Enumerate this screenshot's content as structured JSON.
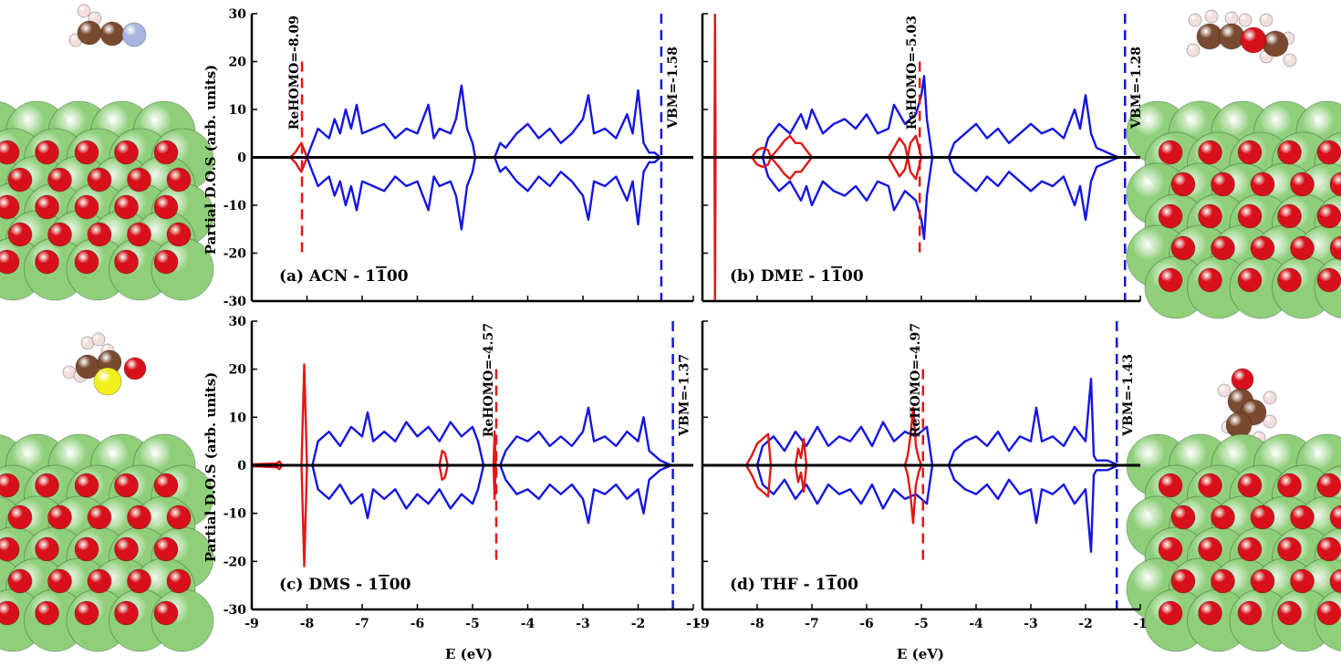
{
  "figure": {
    "ylabel": "Partial D.O.S (arb. units)",
    "xlabel": "E (eV)"
  },
  "colors": {
    "substrate_atom": "#8fcf7a",
    "oxygen_atom": "#d8101a",
    "carbon_atom": "#7a4a30",
    "hydrogen_atom": "#f3dede",
    "nitrogen_atom": "#a9b4e0",
    "sulfur_atom": "#f2f01a",
    "surface_dos": "#1515e0",
    "adsorbate_dos": "#e01818",
    "zero_line": "#000000"
  },
  "chart_data": [
    {
      "type": "line",
      "panel_label": "(a) ACN - 1",
      "panel_label_bar": "1",
      "panel_label_rest": "00",
      "xlim": [
        -9,
        -1
      ],
      "ylim": [
        -30,
        30
      ],
      "xticks": [
        -9,
        -8,
        -7,
        -6,
        -5,
        -4,
        -3,
        -2,
        -1
      ],
      "yticks": [
        -30,
        -20,
        -10,
        0,
        10,
        20,
        30
      ],
      "rehomo": {
        "label": "ReHOMO=-8.09",
        "x": -8.09,
        "ytop": 20
      },
      "vbm": {
        "label": "VBM=-1.58",
        "x": -1.58
      },
      "series": [
        {
          "name": "surface",
          "color": "#1515e0",
          "x": [
            -8.0,
            -7.9,
            -7.8,
            -7.6,
            -7.5,
            -7.4,
            -7.3,
            -7.2,
            -7.1,
            -7.0,
            -6.8,
            -6.6,
            -6.4,
            -6.2,
            -6.0,
            -5.8,
            -5.7,
            -5.6,
            -5.4,
            -5.3,
            -5.2,
            -5.1,
            -5.0,
            -4.95,
            -4.6,
            -4.5,
            -4.4,
            -4.2,
            -4.0,
            -3.8,
            -3.6,
            -3.4,
            -3.2,
            -3.0,
            -2.9,
            -2.8,
            -2.6,
            -2.4,
            -2.2,
            -2.1,
            -2.0,
            -1.9,
            -1.8,
            -1.7,
            -1.6
          ],
          "y": [
            0,
            3,
            6,
            4,
            8,
            5,
            10,
            6,
            11,
            5,
            6,
            7,
            4,
            6,
            5,
            11,
            4,
            6,
            5,
            8,
            15,
            6,
            3,
            0,
            0,
            3,
            2,
            5,
            7,
            4,
            6,
            3,
            5,
            8,
            13,
            5,
            6,
            4,
            9,
            5,
            14,
            3,
            1,
            1,
            0
          ]
        },
        {
          "name": "adsorbate",
          "color": "#e01818",
          "x": [
            -8.3,
            -8.2,
            -8.15,
            -8.1,
            -8.05,
            -8.0
          ],
          "y": [
            0,
            1.2,
            2.2,
            3.0,
            1.5,
            0
          ]
        }
      ]
    },
    {
      "type": "line",
      "panel_label": "(b) DME - 1",
      "panel_label_bar": "1",
      "panel_label_rest": "00",
      "xlim": [
        -9,
        -1
      ],
      "ylim": [
        -30,
        30
      ],
      "xticks": [
        -9,
        -8,
        -7,
        -6,
        -5,
        -4,
        -3,
        -2,
        -1
      ],
      "yticks": [
        -30,
        -20,
        -10,
        0,
        10,
        20,
        30
      ],
      "rehomo": {
        "label": "ReHOMO=-5.03",
        "x": -5.03,
        "ytop": 20
      },
      "vbm": {
        "label": "VBM=-1.28",
        "x": -1.28
      },
      "series": [
        {
          "name": "surface",
          "color": "#1515e0",
          "x": [
            -7.9,
            -7.8,
            -7.6,
            -7.4,
            -7.2,
            -7.1,
            -7.0,
            -6.8,
            -6.6,
            -6.4,
            -6.2,
            -6.0,
            -5.8,
            -5.6,
            -5.5,
            -5.3,
            -5.1,
            -5.0,
            -4.95,
            -4.9,
            -4.8,
            -4.5,
            -4.4,
            -4.2,
            -4.0,
            -3.8,
            -3.6,
            -3.4,
            -3.2,
            -3.0,
            -2.8,
            -2.6,
            -2.4,
            -2.2,
            -2.1,
            -2.0,
            -1.9,
            -1.8,
            -1.6,
            -1.4
          ],
          "y": [
            0,
            4,
            7,
            5,
            9,
            6,
            10,
            5,
            7,
            8,
            6,
            9,
            5,
            6,
            11,
            7,
            9,
            13,
            17,
            8,
            0,
            0,
            3,
            5,
            7,
            4,
            6,
            3,
            5,
            7,
            5,
            6,
            4,
            10,
            6,
            13,
            5,
            2,
            1,
            0
          ]
        },
        {
          "name": "adsorbate",
          "color": "#e01818",
          "x": [
            -8.1,
            -8.0,
            -7.9,
            -7.8,
            -7.75,
            -7.6,
            -7.5,
            -7.4,
            -7.3,
            -7.2,
            -7.1,
            -7.0,
            -5.6,
            -5.5,
            -5.4,
            -5.3,
            -5.25,
            -5.2,
            -5.1,
            -5.0
          ],
          "y": [
            0,
            1.5,
            2,
            1.5,
            0,
            2,
            3.5,
            4.5,
            3,
            3,
            1.5,
            0,
            0,
            2,
            4,
            2.5,
            0,
            3,
            4.5,
            0
          ]
        },
        {
          "name": "adsorbate-spike",
          "color": "#e01818",
          "x": [
            -8.78,
            -8.77,
            -8.76
          ],
          "y": [
            0,
            30,
            0
          ]
        }
      ]
    },
    {
      "type": "line",
      "panel_label": "(c) DMS - 1",
      "panel_label_bar": "1",
      "panel_label_rest": "00",
      "xlim": [
        -9,
        -1
      ],
      "ylim": [
        -30,
        30
      ],
      "xticks": [
        -9,
        -8,
        -7,
        -6,
        -5,
        -4,
        -3,
        -2,
        -1
      ],
      "yticks": [
        -30,
        -20,
        -10,
        0,
        10,
        20,
        30
      ],
      "rehomo": {
        "label": "ReHOMO=-4.57",
        "x": -4.57,
        "ytop": 20
      },
      "vbm": {
        "label": "VBM=-1.37",
        "x": -1.37
      },
      "series": [
        {
          "name": "surface",
          "color": "#1515e0",
          "x": [
            -7.9,
            -7.8,
            -7.6,
            -7.4,
            -7.2,
            -7.0,
            -6.9,
            -6.8,
            -6.6,
            -6.4,
            -6.2,
            -6.0,
            -5.8,
            -5.6,
            -5.4,
            -5.2,
            -5.0,
            -4.9,
            -4.8,
            -4.5,
            -4.4,
            -4.2,
            -4.0,
            -3.8,
            -3.6,
            -3.4,
            -3.2,
            -3.0,
            -2.9,
            -2.8,
            -2.6,
            -2.4,
            -2.2,
            -2.0,
            -1.9,
            -1.8,
            -1.6,
            -1.4
          ],
          "y": [
            0,
            5,
            7,
            4,
            8,
            6,
            11,
            5,
            7,
            5,
            9,
            6,
            8,
            5,
            9,
            6,
            8,
            5,
            0,
            0,
            3,
            6,
            5,
            7,
            4,
            6,
            4,
            7,
            12,
            5,
            6,
            4,
            7,
            5,
            10,
            3,
            1,
            0
          ]
        },
        {
          "name": "adsorbate",
          "color": "#e01818",
          "x": [
            -9.0,
            -8.55,
            -8.5,
            -8.45,
            -8.1,
            -8.05,
            -8.0,
            -7.95,
            -5.6,
            -5.55,
            -5.5,
            -5.45,
            -4.62,
            -4.6,
            -4.58
          ],
          "y": [
            0.2,
            0.4,
            0.8,
            0,
            0,
            21,
            0,
            0,
            0,
            3,
            2.5,
            0,
            0,
            7,
            0
          ]
        }
      ]
    },
    {
      "type": "line",
      "panel_label": "(d) THF - 1",
      "panel_label_bar": "1",
      "panel_label_rest": "00",
      "xlim": [
        -9,
        -1
      ],
      "ylim": [
        -30,
        30
      ],
      "xticks": [
        -9,
        -8,
        -7,
        -6,
        -5,
        -4,
        -3,
        -2,
        -1
      ],
      "yticks": [
        -30,
        -20,
        -10,
        0,
        10,
        20,
        30
      ],
      "rehomo": {
        "label": "ReHOMO=-4.97",
        "x": -4.97,
        "ytop": 20
      },
      "vbm": {
        "label": "VBM=-1.43",
        "x": -1.43
      },
      "series": [
        {
          "name": "surface",
          "color": "#1515e0",
          "x": [
            -8.0,
            -7.9,
            -7.7,
            -7.5,
            -7.3,
            -7.1,
            -6.9,
            -6.7,
            -6.5,
            -6.3,
            -6.1,
            -5.9,
            -5.7,
            -5.5,
            -5.3,
            -5.1,
            -4.9,
            -4.8,
            -4.5,
            -4.4,
            -4.2,
            -4.0,
            -3.8,
            -3.6,
            -3.4,
            -3.2,
            -3.0,
            -2.9,
            -2.8,
            -2.6,
            -2.4,
            -2.2,
            -2.0,
            -1.9,
            -1.85,
            -1.8,
            -1.6,
            -1.4
          ],
          "y": [
            0,
            4,
            6,
            3,
            7,
            4,
            8,
            4,
            6,
            5,
            8,
            4,
            9,
            5,
            7,
            6,
            8,
            0,
            0,
            3,
            5,
            6,
            4,
            7,
            3,
            6,
            5,
            12,
            5,
            6,
            4,
            8,
            5,
            18,
            2,
            1,
            1,
            0
          ]
        },
        {
          "name": "adsorbate",
          "color": "#e01818",
          "x": [
            -8.2,
            -8.1,
            -8.0,
            -7.9,
            -7.8,
            -7.75,
            -7.3,
            -7.25,
            -7.2,
            -7.15,
            -7.1,
            -5.3,
            -5.25,
            -5.2,
            -5.15,
            -5.1,
            -5.05,
            -5.0
          ],
          "y": [
            0,
            2,
            4.5,
            5.5,
            6.5,
            0,
            0,
            3.5,
            1.5,
            5.5,
            0,
            0,
            2,
            6,
            12,
            4,
            1.5,
            0
          ]
        }
      ]
    }
  ]
}
